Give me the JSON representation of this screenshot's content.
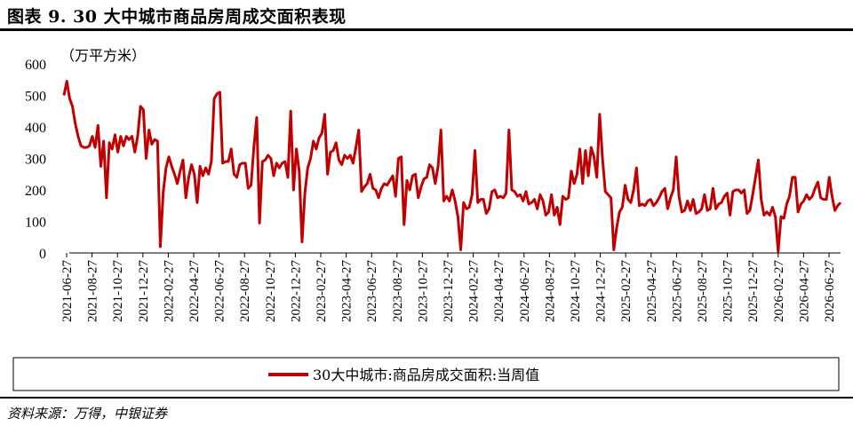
{
  "header": {
    "title": "图表 9. 30 大中城市商品房周成交面积表现"
  },
  "footer": {
    "source": "资料来源：万得，中银证券"
  },
  "colors": {
    "series": "#c00000",
    "axis": "#000000"
  },
  "chart_data": {
    "type": "line",
    "title": "图表 9. 30 大中城市商品房周成交面积表现",
    "unit_label": "（万平方米）",
    "ylim": [
      0,
      600
    ],
    "yticks": [
      0,
      100,
      200,
      300,
      400,
      500,
      600
    ],
    "xticks": [
      "2021-06-27",
      "2021-08-27",
      "2021-10-27",
      "2021-12-27",
      "2022-02-27",
      "2022-04-27",
      "2022-06-27",
      "2022-08-27",
      "2022-10-27",
      "2022-12-27",
      "2023-02-27",
      "2023-04-27",
      "2023-06-27",
      "2023-08-27",
      "2023-10-27",
      "2023-12-27",
      "2024-02-27",
      "2024-04-27",
      "2024-06-27",
      "2024-08-27",
      "2024-10-27",
      "2024-12-27",
      "2025-02-27",
      "2025-04-27",
      "2025-06-27",
      "2025-08-27",
      "2025-10-27",
      "2025-12-27",
      "2026-02-27",
      "2026-04-27",
      "2026-06-27"
    ],
    "grid": false,
    "legend": "bottom-center",
    "series": [
      {
        "name": "30大中城市:商品房成交面积:当周值",
        "values": [
          500,
          545,
          490,
          465,
          410,
          370,
          340,
          335,
          335,
          340,
          370,
          335,
          405,
          275,
          355,
          175,
          350,
          330,
          375,
          320,
          370,
          340,
          370,
          360,
          370,
          320,
          370,
          465,
          455,
          300,
          390,
          345,
          360,
          355,
          20,
          190,
          270,
          305,
          275,
          250,
          220,
          260,
          295,
          175,
          240,
          280,
          250,
          160,
          275,
          245,
          270,
          250,
          290,
          490,
          505,
          510,
          285,
          290,
          290,
          330,
          250,
          240,
          280,
          285,
          285,
          205,
          215,
          335,
          430,
          95,
          290,
          295,
          310,
          300,
          245,
          285,
          270,
          285,
          290,
          240,
          450,
          200,
          330,
          260,
          35,
          190,
          270,
          300,
          355,
          330,
          365,
          380,
          440,
          250,
          320,
          325,
          350,
          295,
          280,
          310,
          300,
          310,
          285,
          335,
          390,
          195,
          210,
          220,
          250,
          205,
          200,
          175,
          205,
          220,
          215,
          230,
          245,
          180,
          300,
          305,
          90,
          230,
          200,
          245,
          250,
          175,
          210,
          235,
          240,
          280,
          270,
          220,
          275,
          390,
          165,
          180,
          165,
          200,
          165,
          115,
          10,
          160,
          140,
          145,
          185,
          325,
          160,
          170,
          170,
          125,
          140,
          195,
          200,
          175,
          180,
          175,
          190,
          390,
          200,
          195,
          180,
          185,
          165,
          195,
          155,
          160,
          170,
          140,
          185,
          165,
          120,
          130,
          185,
          120,
          145,
          90,
          180,
          170,
          175,
          260,
          220,
          250,
          330,
          220,
          325,
          245,
          335,
          305,
          240,
          440,
          300,
          195,
          185,
          175,
          10,
          80,
          130,
          145,
          215,
          170,
          160,
          200,
          270,
          150,
          155,
          150,
          165,
          170,
          150,
          160,
          175,
          195,
          205,
          140,
          175,
          200,
          305,
          180,
          130,
          135,
          165,
          135,
          170,
          125,
          130,
          140,
          185,
          135,
          140,
          205,
          140,
          155,
          160,
          180,
          190,
          120,
          195,
          200,
          200,
          190,
          200,
          125,
          135,
          185,
          240,
          295,
          170,
          120,
          130,
          120,
          145,
          115,
          5,
          115,
          110,
          155,
          180,
          240,
          240,
          130,
          155,
          165,
          185,
          170,
          180,
          205,
          225,
          175,
          170,
          170,
          240,
          180,
          135,
          150,
          160
        ]
      }
    ]
  }
}
